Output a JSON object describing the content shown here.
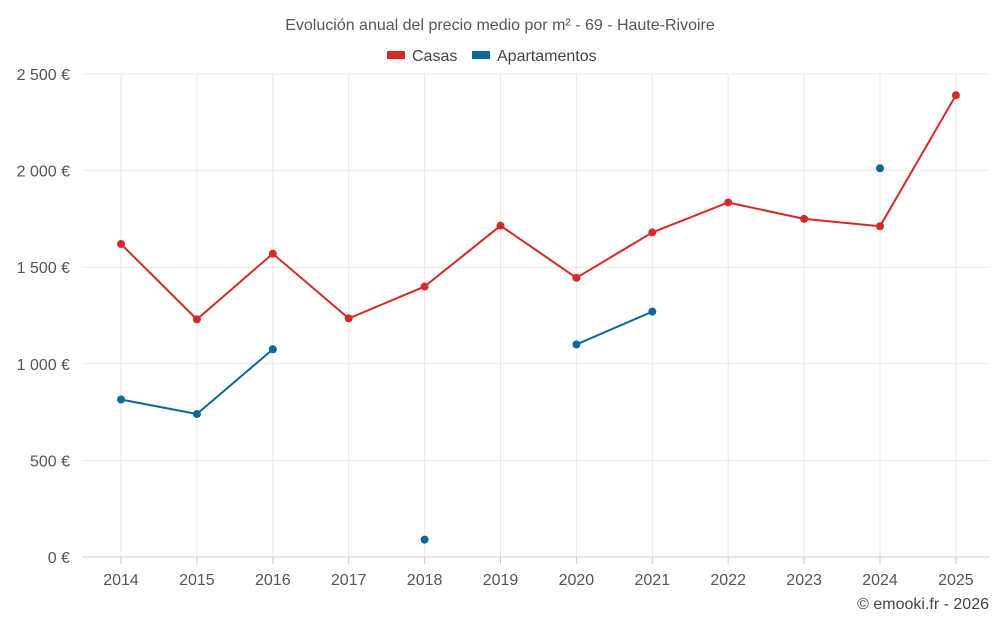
{
  "chart_data": {
    "type": "line",
    "title": "Evolución anual del precio medio por m² - 69 - Haute-Rivoire",
    "categories": [
      "2014",
      "2015",
      "2016",
      "2017",
      "2018",
      "2019",
      "2020",
      "2021",
      "2022",
      "2023",
      "2024",
      "2025"
    ],
    "y_ticks": [
      "0 €",
      "500 €",
      "1 000 €",
      "1 500 €",
      "2 000 €",
      "2 500 €"
    ],
    "y_tick_values": [
      0,
      500,
      1000,
      1500,
      2000,
      2500
    ],
    "ylim": [
      0,
      2500
    ],
    "legend_position": "top-center",
    "series": [
      {
        "name": "Casas",
        "color": "#d32a2a",
        "values": [
          1620,
          1230,
          1570,
          1235,
          1400,
          1715,
          1445,
          1680,
          1835,
          1750,
          1712,
          2390
        ]
      },
      {
        "name": "Apartamentos",
        "color": "#0e6699",
        "values": [
          815,
          740,
          1075,
          null,
          90,
          null,
          1100,
          1270,
          null,
          null,
          2012,
          null
        ]
      }
    ],
    "credit": "© emooki.fr - 2026"
  }
}
